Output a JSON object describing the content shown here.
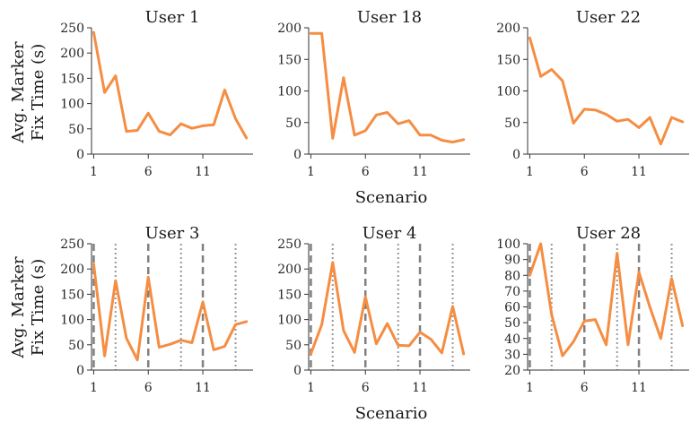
{
  "figure": {
    "ylabel": [
      "Avg. Marker",
      "Fix Time (s)"
    ],
    "xlabel": "Scenario"
  },
  "colors": {
    "series": "#f58d42",
    "dashed": "#808080",
    "dotted": "#999999"
  },
  "chart_data": [
    {
      "type": "line",
      "title": "User 1",
      "x": [
        1,
        2,
        3,
        4,
        5,
        6,
        7,
        8,
        9,
        10,
        11,
        12,
        13,
        14,
        15
      ],
      "series": [
        {
          "values": [
            241,
            122,
            155,
            45,
            47,
            81,
            45,
            38,
            60,
            51,
            56,
            58,
            127,
            70,
            32
          ]
        }
      ],
      "ylim": [
        0,
        250
      ],
      "yticks": [
        0,
        50,
        100,
        150,
        200,
        250
      ],
      "xticks": [
        1,
        6,
        11
      ],
      "vlines_dashed": [],
      "vlines_dotted": []
    },
    {
      "type": "line",
      "title": "User 18",
      "x": [
        1,
        2,
        3,
        4,
        5,
        6,
        7,
        8,
        9,
        10,
        11,
        12,
        13,
        14,
        15
      ],
      "series": [
        {
          "values": [
            191,
            191,
            25,
            121,
            30,
            37,
            62,
            66,
            48,
            53,
            30,
            30,
            22,
            19,
            23
          ]
        }
      ],
      "ylim": [
        0,
        200
      ],
      "yticks": [
        0,
        50,
        100,
        150,
        200
      ],
      "xticks": [
        1,
        6,
        11
      ],
      "vlines_dashed": [],
      "vlines_dotted": []
    },
    {
      "type": "line",
      "title": "User 22",
      "x": [
        1,
        2,
        3,
        4,
        5,
        6,
        7,
        8,
        9,
        10,
        11,
        12,
        13,
        14,
        15
      ],
      "series": [
        {
          "values": [
            184,
            123,
            134,
            116,
            49,
            71,
            70,
            63,
            52,
            55,
            42,
            58,
            16,
            58,
            51
          ]
        }
      ],
      "ylim": [
        0,
        200
      ],
      "yticks": [
        0,
        50,
        100,
        150,
        200
      ],
      "xticks": [
        1,
        6,
        11
      ],
      "vlines_dashed": [],
      "vlines_dotted": []
    },
    {
      "type": "line",
      "title": "User 3",
      "x": [
        1,
        2,
        3,
        4,
        5,
        6,
        7,
        8,
        9,
        10,
        11,
        12,
        13,
        14,
        15
      ],
      "series": [
        {
          "values": [
            210,
            28,
            177,
            63,
            20,
            184,
            45,
            51,
            59,
            54,
            135,
            40,
            47,
            90,
            96
          ]
        }
      ],
      "ylim": [
        0,
        250
      ],
      "yticks": [
        0,
        50,
        100,
        150,
        200,
        250
      ],
      "xticks": [
        1,
        6,
        11
      ],
      "vlines_dashed": [
        1,
        6,
        11
      ],
      "vlines_dotted": [
        3,
        9,
        14
      ]
    },
    {
      "type": "line",
      "title": "User 4",
      "x": [
        1,
        2,
        3,
        4,
        5,
        6,
        7,
        8,
        9,
        10,
        11,
        12,
        13,
        14,
        15
      ],
      "series": [
        {
          "values": [
            32,
            90,
            213,
            78,
            35,
            145,
            52,
            92,
            49,
            48,
            75,
            61,
            34,
            126,
            32
          ]
        }
      ],
      "ylim": [
        0,
        250
      ],
      "yticks": [
        0,
        50,
        100,
        150,
        200,
        250
      ],
      "xticks": [
        1,
        6,
        11
      ],
      "vlines_dashed": [
        1,
        6,
        11
      ],
      "vlines_dotted": [
        3,
        9,
        14
      ]
    },
    {
      "type": "line",
      "title": "User 28",
      "x": [
        1,
        2,
        3,
        4,
        5,
        6,
        7,
        8,
        9,
        10,
        11,
        12,
        13,
        14,
        15
      ],
      "series": [
        {
          "values": [
            80,
            100,
            55,
            29,
            38,
            51,
            52,
            36,
            94,
            36,
            82,
            60,
            40,
            78,
            48
          ]
        }
      ],
      "ylim": [
        20,
        100
      ],
      "yticks": [
        20,
        30,
        40,
        50,
        60,
        70,
        80,
        90,
        100
      ],
      "xticks": [
        1,
        6,
        11
      ],
      "vlines_dashed": [
        1,
        6,
        11
      ],
      "vlines_dotted": [
        3,
        9,
        14
      ]
    }
  ]
}
